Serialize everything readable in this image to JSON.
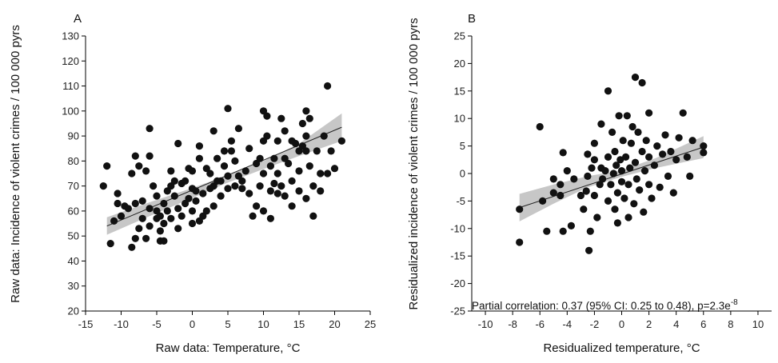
{
  "chart_data": [
    {
      "panel": "A",
      "type": "scatter",
      "xlabel": "Raw data: Temperature, °C",
      "ylabel": "Raw data: Incidence of violent crimes / 100 000 pyrs",
      "xlim": [
        -15,
        25
      ],
      "ylim": [
        20,
        130
      ],
      "xticks": [
        -15,
        -10,
        -5,
        0,
        5,
        10,
        15,
        20,
        25
      ],
      "yticks": [
        20,
        30,
        40,
        50,
        60,
        70,
        80,
        90,
        100,
        110,
        120,
        130
      ],
      "fit": {
        "x": [
          -12,
          21
        ],
        "y": [
          54,
          93.5
        ]
      },
      "ci_band": {
        "x": [
          -12,
          -6,
          0,
          4.5,
          10,
          15,
          21
        ],
        "lower": [
          50.5,
          58.0,
          65.2,
          70.8,
          76.8,
          82.0,
          88.0
        ],
        "upper": [
          57.5,
          63.5,
          69.2,
          73.8,
          80.0,
          87.0,
          99.0
        ]
      },
      "points": [
        [
          -12.5,
          70
        ],
        [
          -12,
          78
        ],
        [
          -11.5,
          47
        ],
        [
          -11,
          56
        ],
        [
          -10.5,
          63
        ],
        [
          -10.5,
          67
        ],
        [
          -10,
          58
        ],
        [
          -9.5,
          62
        ],
        [
          -9,
          61
        ],
        [
          -8.5,
          45.5
        ],
        [
          -8.5,
          75
        ],
        [
          -8,
          82
        ],
        [
          -8,
          63
        ],
        [
          -8,
          49
        ],
        [
          -7.5,
          78
        ],
        [
          -7.5,
          53
        ],
        [
          -7,
          64
        ],
        [
          -7,
          57
        ],
        [
          -6.5,
          49
        ],
        [
          -6.5,
          76
        ],
        [
          -6,
          93
        ],
        [
          -6,
          82
        ],
        [
          -6,
          61
        ],
        [
          -6,
          54
        ],
        [
          -5.5,
          70
        ],
        [
          -5,
          60
        ],
        [
          -5,
          66
        ],
        [
          -5,
          57
        ],
        [
          -4.5,
          58
        ],
        [
          -4.5,
          52
        ],
        [
          -4.5,
          48
        ],
        [
          -4,
          48
        ],
        [
          -4,
          63
        ],
        [
          -4,
          55
        ],
        [
          -3.5,
          60
        ],
        [
          -3.5,
          68
        ],
        [
          -3,
          70
        ],
        [
          -3,
          76
        ],
        [
          -3,
          57
        ],
        [
          -2.5,
          72
        ],
        [
          -2.5,
          66
        ],
        [
          -2,
          87
        ],
        [
          -2,
          61
        ],
        [
          -2,
          53
        ],
        [
          -1.5,
          71
        ],
        [
          -1.5,
          58
        ],
        [
          -1,
          63
        ],
        [
          -1,
          72
        ],
        [
          -0.5,
          65
        ],
        [
          -0.5,
          77
        ],
        [
          0,
          76
        ],
        [
          0,
          69
        ],
        [
          0,
          60
        ],
        [
          0,
          55
        ],
        [
          0.5,
          68
        ],
        [
          0.5,
          64
        ],
        [
          1,
          86
        ],
        [
          1,
          56
        ],
        [
          1,
          81
        ],
        [
          1.5,
          67
        ],
        [
          1.5,
          58
        ],
        [
          2,
          77
        ],
        [
          2,
          60
        ],
        [
          2.5,
          69
        ],
        [
          2.5,
          75
        ],
        [
          3,
          92
        ],
        [
          3,
          70
        ],
        [
          3,
          62
        ],
        [
          3.5,
          81
        ],
        [
          3.5,
          72
        ],
        [
          4,
          72
        ],
        [
          4,
          66
        ],
        [
          4.5,
          84
        ],
        [
          4.5,
          78
        ],
        [
          5,
          101
        ],
        [
          5,
          69
        ],
        [
          5,
          74
        ],
        [
          5.5,
          88
        ],
        [
          5.5,
          84
        ],
        [
          6,
          70
        ],
        [
          6,
          80
        ],
        [
          6.5,
          93
        ],
        [
          6.5,
          74
        ],
        [
          7,
          72
        ],
        [
          7,
          69
        ],
        [
          7.5,
          76
        ],
        [
          8,
          85
        ],
        [
          8,
          67
        ],
        [
          8.5,
          58
        ],
        [
          9,
          62
        ],
        [
          9,
          79
        ],
        [
          9.5,
          81
        ],
        [
          9.5,
          70
        ],
        [
          10,
          100
        ],
        [
          10,
          88
        ],
        [
          10,
          75
        ],
        [
          10,
          60
        ],
        [
          10.5,
          98
        ],
        [
          10.5,
          90
        ],
        [
          11,
          78
        ],
        [
          11,
          68
        ],
        [
          11,
          57
        ],
        [
          11.5,
          71
        ],
        [
          11.5,
          81
        ],
        [
          12,
          88
        ],
        [
          12,
          75
        ],
        [
          12,
          67
        ],
        [
          12.5,
          97
        ],
        [
          12.5,
          70
        ],
        [
          13,
          92
        ],
        [
          13,
          66
        ],
        [
          13,
          81
        ],
        [
          13.5,
          79
        ],
        [
          14,
          88
        ],
        [
          14,
          72
        ],
        [
          14,
          62
        ],
        [
          14.5,
          87
        ],
        [
          15,
          84
        ],
        [
          15,
          68
        ],
        [
          15,
          76
        ],
        [
          15.5,
          86
        ],
        [
          15.5,
          95
        ],
        [
          16,
          100
        ],
        [
          16,
          90
        ],
        [
          16,
          84
        ],
        [
          16,
          65
        ],
        [
          16.5,
          97
        ],
        [
          16.5,
          78
        ],
        [
          17,
          70
        ],
        [
          17,
          58
        ],
        [
          17.5,
          84
        ],
        [
          18,
          75
        ],
        [
          18,
          68
        ],
        [
          18.5,
          90
        ],
        [
          19,
          110
        ],
        [
          19,
          75
        ],
        [
          19.5,
          84
        ],
        [
          20,
          77
        ],
        [
          21,
          88
        ]
      ]
    },
    {
      "panel": "B",
      "type": "scatter",
      "xlabel": "Residualized temperature, °C",
      "ylabel": "Residualized incidence of violent crimes / 100 000 pyrs",
      "xlim": [
        -11,
        11
      ],
      "ylim": [
        -25,
        25
      ],
      "xticks": [
        -10,
        -8,
        -6,
        -4,
        -2,
        0,
        2,
        4,
        6,
        8,
        10
      ],
      "yticks": [
        -25,
        -20,
        -15,
        -10,
        -5,
        0,
        5,
        10,
        15,
        20,
        25
      ],
      "fit": {
        "x": [
          -7.5,
          6
        ],
        "y": [
          -6.2,
          4.8
        ]
      },
      "ci_band": {
        "x": [
          -7.5,
          -5,
          -2.5,
          0,
          2.5,
          6
        ],
        "lower": [
          -8.7,
          -5.5,
          -2.5,
          -0.6,
          1.0,
          2.8
        ],
        "upper": [
          -3.7,
          -2.0,
          -0.5,
          0.6,
          2.8,
          6.8
        ]
      },
      "annotation": {
        "text": "Partial correlation: 0.37 (95% CI: 0.25 to 0.48), p=2.3e",
        "superscript": "-8"
      },
      "points": [
        [
          -7.5,
          -6.5
        ],
        [
          -7.5,
          -12.5
        ],
        [
          -6,
          8.5
        ],
        [
          -5.8,
          -5
        ],
        [
          -5.5,
          -10.5
        ],
        [
          -5,
          -3.5
        ],
        [
          -5,
          -1
        ],
        [
          -4.5,
          -2
        ],
        [
          -4.5,
          -4
        ],
        [
          -4.3,
          3.8
        ],
        [
          -4.3,
          -10.5
        ],
        [
          -4,
          0.5
        ],
        [
          -3.7,
          -9.5
        ],
        [
          -3.5,
          -1
        ],
        [
          -3,
          -4
        ],
        [
          -2.8,
          -6.5
        ],
        [
          -2.6,
          -3.2
        ],
        [
          -2.5,
          3.5
        ],
        [
          -2.5,
          -0.5
        ],
        [
          -2.4,
          -14
        ],
        [
          -2.3,
          -10.5
        ],
        [
          -2.2,
          1
        ],
        [
          -2,
          5.5
        ],
        [
          -2,
          2.5
        ],
        [
          -2,
          -4
        ],
        [
          -1.8,
          -8
        ],
        [
          -1.6,
          -2
        ],
        [
          -1.5,
          9
        ],
        [
          -1.5,
          1
        ],
        [
          -1.4,
          -1
        ],
        [
          -1.2,
          0.5
        ],
        [
          -1,
          15
        ],
        [
          -1,
          -5
        ],
        [
          -1,
          3
        ],
        [
          -0.8,
          -2
        ],
        [
          -0.7,
          7.5
        ],
        [
          -0.6,
          0
        ],
        [
          -0.5,
          -6.5
        ],
        [
          -0.5,
          4
        ],
        [
          -0.4,
          1.5
        ],
        [
          -0.3,
          -3.5
        ],
        [
          -0.3,
          -9
        ],
        [
          -0.2,
          10.5
        ],
        [
          -0.1,
          2.5
        ],
        [
          0,
          -1.5
        ],
        [
          0,
          0.5
        ],
        [
          0.1,
          6
        ],
        [
          0.2,
          -4.5
        ],
        [
          0.3,
          3
        ],
        [
          0.4,
          10.5
        ],
        [
          0.5,
          -2
        ],
        [
          0.5,
          -8
        ],
        [
          0.6,
          1
        ],
        [
          0.7,
          5.5
        ],
        [
          0.8,
          8.5
        ],
        [
          0.9,
          -5.5
        ],
        [
          1,
          17.5
        ],
        [
          1,
          2
        ],
        [
          1.1,
          -1
        ],
        [
          1.2,
          7.5
        ],
        [
          1.3,
          -3
        ],
        [
          1.5,
          16.5
        ],
        [
          1.5,
          4
        ],
        [
          1.6,
          -7
        ],
        [
          1.7,
          0.5
        ],
        [
          1.8,
          6
        ],
        [
          2,
          11
        ],
        [
          2,
          -2
        ],
        [
          2,
          3
        ],
        [
          2.2,
          -4.5
        ],
        [
          2.4,
          1.5
        ],
        [
          2.6,
          5
        ],
        [
          2.8,
          -2.5
        ],
        [
          3,
          3.5
        ],
        [
          3.2,
          7
        ],
        [
          3.4,
          -0.5
        ],
        [
          3.6,
          4
        ],
        [
          3.8,
          -3.5
        ],
        [
          4,
          2.5
        ],
        [
          4.2,
          6.5
        ],
        [
          4.5,
          11
        ],
        [
          4.8,
          3
        ],
        [
          5,
          -0.5
        ],
        [
          5.2,
          6
        ],
        [
          6,
          5
        ],
        [
          6,
          3.8
        ]
      ]
    }
  ]
}
